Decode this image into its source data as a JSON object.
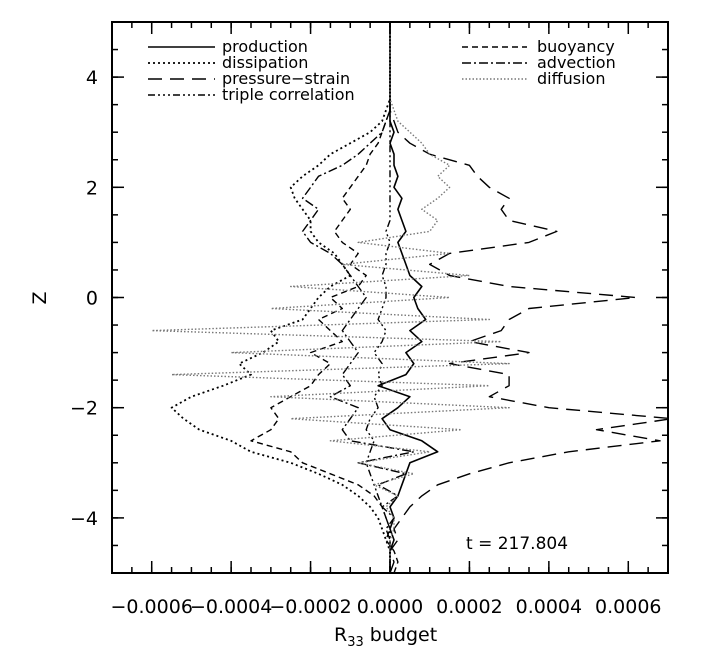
{
  "chart_data": {
    "type": "line",
    "orientation": "profile",
    "xlabel_main": "R",
    "xlabel_sub": "33",
    "xlabel_rest": " budget",
    "ylabel": "Z",
    "xlim": [
      -0.0007,
      0.0007
    ],
    "ylim": [
      -5,
      5
    ],
    "x_ticks": [
      -0.0006,
      -0.0004,
      -0.0002,
      0.0,
      0.0002,
      0.0004,
      0.0006
    ],
    "x_tick_labels": [
      "−0.0006",
      "−0.0004",
      "−0.0002",
      "0.0000",
      "0.0002",
      "0.0004",
      "0.0006"
    ],
    "y_ticks": [
      -4,
      -2,
      0,
      2,
      4
    ],
    "y_tick_labels": [
      "−4",
      "−2",
      "0",
      "2",
      "4"
    ],
    "grid": false,
    "legend_placement": "top",
    "annotation": "t  =  217.804",
    "z": [
      -5.0,
      -4.8,
      -4.6,
      -4.4,
      -4.2,
      -4.0,
      -3.8,
      -3.6,
      -3.4,
      -3.2,
      -3.0,
      -2.8,
      -2.6,
      -2.4,
      -2.2,
      -2.0,
      -1.8,
      -1.6,
      -1.4,
      -1.2,
      -1.0,
      -0.8,
      -0.6,
      -0.4,
      -0.2,
      0.0,
      0.2,
      0.4,
      0.6,
      0.8,
      1.0,
      1.2,
      1.4,
      1.6,
      1.8,
      2.0,
      2.2,
      2.4,
      2.6,
      2.8,
      3.0,
      3.2,
      3.4,
      3.6,
      3.8,
      4.0,
      4.2,
      4.4,
      4.6,
      4.8,
      5.0
    ],
    "series": [
      {
        "name": "production",
        "dash": "",
        "color": "#000000",
        "width": 1.6,
        "values": [
          0.0,
          0.0,
          0.0,
          1e-05,
          0.0,
          1e-05,
          0.0,
          2e-05,
          3e-05,
          4e-05,
          5e-05,
          0.00012,
          8e-05,
          0.0,
          -2e-05,
          2e-05,
          5e-05,
          -3e-05,
          4e-05,
          6e-05,
          4e-05,
          8e-05,
          5e-05,
          9e-05,
          7e-05,
          6e-05,
          8e-05,
          5e-05,
          4e-05,
          3e-05,
          2e-05,
          4e-05,
          3e-05,
          2e-05,
          3e-05,
          1e-05,
          2e-05,
          1e-05,
          1e-05,
          0.0,
          1e-05,
          0.0,
          0.0,
          0.0,
          0.0,
          0.0,
          0.0,
          0.0,
          0.0,
          0.0,
          0.0
        ]
      },
      {
        "name": "dissipation",
        "dash": "2 3",
        "color": "#000000",
        "width": 1.8,
        "values": [
          0.0,
          0.0,
          0.0,
          -1e-05,
          -2e-05,
          -3e-05,
          -5e-05,
          -8e-05,
          -0.00012,
          -0.00018,
          -0.00025,
          -0.00035,
          -0.0004,
          -0.00048,
          -0.00052,
          -0.00055,
          -0.0005,
          -0.00042,
          -0.00035,
          -0.00038,
          -0.00032,
          -0.00028,
          -0.0003,
          -0.00022,
          -0.0002,
          -0.00018,
          -0.00015,
          -0.0001,
          -0.00012,
          -0.00014,
          -0.00018,
          -0.0002,
          -0.0002,
          -0.00022,
          -0.00024,
          -0.00025,
          -0.00022,
          -0.00018,
          -0.00015,
          -0.0001,
          -5e-05,
          -2e-05,
          -1e-05,
          0.0,
          0.0,
          0.0,
          0.0,
          0.0,
          0.0,
          0.0,
          0.0
        ]
      },
      {
        "name": "pressure−strain",
        "dash": "14 8",
        "color": "#000000",
        "width": 1.4,
        "values": [
          0.0,
          1e-05,
          0.0,
          2e-05,
          1e-05,
          3e-05,
          5e-05,
          8e-05,
          0.00012,
          0.0002,
          0.0003,
          0.00045,
          0.00068,
          0.00052,
          0.00071,
          0.0004,
          0.00025,
          0.0003,
          0.0003,
          0.00015,
          0.00035,
          0.0002,
          0.00028,
          0.0003,
          0.00035,
          0.00062,
          0.0003,
          0.00015,
          0.0001,
          0.00015,
          0.00035,
          0.00042,
          0.0003,
          0.00028,
          0.0003,
          0.00025,
          0.00022,
          0.0002,
          0.0001,
          5e-05,
          2e-05,
          1e-05,
          0.0,
          0.0,
          0.0,
          0.0,
          0.0,
          0.0,
          0.0,
          0.0,
          0.0
        ]
      },
      {
        "name": "triple correlation",
        "dash": "7 3 2 3 2 3 2 3",
        "color": "#000000",
        "width": 1.4,
        "values": [
          0.0,
          0.0,
          0.0,
          0.0,
          0.0,
          -1e-05,
          -2e-05,
          -3e-05,
          -4e-05,
          -5e-05,
          -6e-05,
          -5e-05,
          -4e-05,
          -6e-05,
          -5e-05,
          -3e-05,
          -4e-05,
          -2e-05,
          -3e-05,
          -2e-05,
          -4e-05,
          -2e-05,
          -1e-05,
          -3e-05,
          -2e-05,
          -1e-05,
          -1e-05,
          -2e-05,
          -1e-05,
          -1e-05,
          0.0,
          -1e-05,
          0.0,
          0.0,
          0.0,
          0.0,
          0.0,
          0.0,
          0.0,
          0.0,
          0.0,
          0.0,
          0.0,
          0.0,
          0.0,
          0.0,
          0.0,
          0.0,
          0.0,
          0.0,
          0.0
        ]
      },
      {
        "name": "buoyancy",
        "dash": "6 4",
        "color": "#000000",
        "width": 1.4,
        "values": [
          1e-05,
          2e-05,
          1e-05,
          -1e-05,
          0.0,
          -1e-05,
          -2e-05,
          -4e-05,
          -8e-05,
          -0.00015,
          -0.00022,
          -0.00025,
          -0.00035,
          -0.0003,
          -0.00028,
          -0.0003,
          -0.00025,
          -0.0002,
          -0.00018,
          -0.00015,
          -0.0002,
          -0.00012,
          -0.00015,
          -0.00018,
          -0.00012,
          -0.00015,
          -8e-05,
          -6e-05,
          -0.0001,
          -8e-05,
          -0.00012,
          -0.00014,
          -0.00012,
          -0.0001,
          -0.00012,
          -0.0001,
          -8e-05,
          -6e-05,
          -5e-05,
          -3e-05,
          -2e-05,
          -1e-05,
          0.0,
          0.0,
          0.0,
          0.0,
          0.0,
          0.0,
          0.0,
          0.0,
          0.0
        ]
      },
      {
        "name": "advection",
        "dash": "9 3 2 3",
        "color": "#000000",
        "width": 1.4,
        "values": [
          0.0,
          0.0,
          0.0,
          0.0,
          -1e-05,
          1e-05,
          -2e-05,
          2e-05,
          -3e-05,
          4e-05,
          -8e-05,
          6e-05,
          -0.0001,
          -0.00012,
          -0.0001,
          -8e-05,
          -0.00015,
          -0.0001,
          -0.00012,
          -0.0001,
          -8e-05,
          -0.0001,
          -0.00012,
          -0.0001,
          -8e-05,
          -6e-05,
          -8e-05,
          -0.0001,
          -0.00012,
          -0.00015,
          -0.0002,
          -0.00022,
          -0.0002,
          -0.00018,
          -0.00022,
          -0.0002,
          -0.00018,
          -0.00012,
          -8e-05,
          -5e-05,
          -2e-05,
          -1e-05,
          0.0,
          0.0,
          0.0,
          0.0,
          0.0,
          0.0,
          0.0,
          0.0,
          0.0
        ]
      },
      {
        "name": "diffusion",
        "dash": "1.5 2",
        "color": "#777777",
        "width": 1.4,
        "values": [
          0.0,
          0.0,
          0.0,
          0.0,
          1e-05,
          1e-05,
          -1e-05,
          2e-05,
          -4e-05,
          6e-05,
          -8e-05,
          0.0001,
          -0.00015,
          0.00018,
          -0.00025,
          0.0003,
          -0.0003,
          0.00025,
          -0.00055,
          0.0003,
          -0.0004,
          0.00028,
          -0.0006,
          0.00025,
          -0.0003,
          0.00015,
          -0.00025,
          0.0002,
          -0.00012,
          0.00015,
          -8e-05,
          0.0001,
          0.00012,
          8e-05,
          0.00012,
          0.00015,
          0.00012,
          0.00015,
          0.0001,
          8e-05,
          5e-05,
          2e-05,
          1e-05,
          0.0,
          0.0,
          0.0,
          0.0,
          0.0,
          0.0,
          0.0,
          0.0
        ]
      }
    ]
  }
}
